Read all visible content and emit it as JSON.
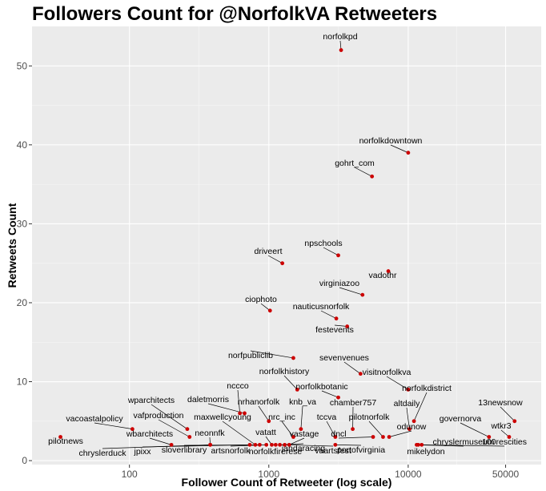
{
  "chart_data": {
    "type": "scatter",
    "title": "Followers Count for @NorfolkVA Retweeters",
    "xlabel": "Follower Count of Retweeter (log scale)",
    "ylabel": "Retweets Count",
    "x_scale": "log10",
    "xlim": [
      20,
      90000
    ],
    "ylim": [
      -0.5,
      55
    ],
    "x_ticks": [
      100,
      1000,
      10000,
      50000
    ],
    "x_tick_labels": [
      "100",
      "1000",
      "10000",
      "50000"
    ],
    "y_ticks": [
      0,
      10,
      20,
      30,
      40,
      50
    ],
    "y_tick_labels": [
      "0",
      "10",
      "20",
      "30",
      "40",
      "50"
    ],
    "grid": true,
    "point_color": "#cc0000",
    "points": [
      {
        "label": "norfolkpd",
        "x": 3300,
        "y": 52
      },
      {
        "label": "norfolkdowntown",
        "x": 10000,
        "y": 39
      },
      {
        "label": "gohrt_com",
        "x": 5500,
        "y": 36
      },
      {
        "label": "npschools",
        "x": 3150,
        "y": 26
      },
      {
        "label": "driveert",
        "x": 1250,
        "y": 25
      },
      {
        "label": "vadothr",
        "x": 7200,
        "y": 24
      },
      {
        "label": "virginiazoo",
        "x": 4700,
        "y": 21
      },
      {
        "label": "ciophoto",
        "x": 1020,
        "y": 19
      },
      {
        "label": "nauticusnorfolk",
        "x": 3050,
        "y": 18
      },
      {
        "label": "festevents",
        "x": 3650,
        "y": 17
      },
      {
        "label": "norfpubliclib",
        "x": 1500,
        "y": 13
      },
      {
        "label": "sevenvenues",
        "x": 4550,
        "y": 11
      },
      {
        "label": "norfolkhistory",
        "x": 1600,
        "y": 9
      },
      {
        "label": "visitnorfolkva",
        "x": 10000,
        "y": 9
      },
      {
        "label": "norfolkbotanic",
        "x": 3150,
        "y": 8
      },
      {
        "label": "nccco",
        "x": 620,
        "y": 6
      },
      {
        "label": "daletmorris",
        "x": 670,
        "y": 6
      },
      {
        "label": "norfolkdistrict",
        "x": 11000,
        "y": 5
      },
      {
        "label": "13newsnow",
        "x": 58000,
        "y": 5
      },
      {
        "label": "nrhanorfolk",
        "x": 1000,
        "y": 5
      },
      {
        "label": "wparchitects",
        "x": 260,
        "y": 4
      },
      {
        "label": "vacoastalpolicy",
        "x": 105,
        "y": 4
      },
      {
        "label": "knb_va",
        "x": 1700,
        "y": 4
      },
      {
        "label": "chamber757",
        "x": 4000,
        "y": 4
      },
      {
        "label": "altdaily",
        "x": 10200,
        "y": 4
      },
      {
        "label": "vafproduction",
        "x": 270,
        "y": 3
      },
      {
        "label": "pilotnews",
        "x": 32,
        "y": 3
      },
      {
        "label": "nrc_inc",
        "x": 1500,
        "y": 3
      },
      {
        "label": "dncl",
        "x": 5600,
        "y": 3
      },
      {
        "label": "tccva",
        "x": 3000,
        "y": 3
      },
      {
        "label": "pilotnorfolk",
        "x": 6600,
        "y": 3
      },
      {
        "label": "governorva",
        "x": 38000,
        "y": 3
      },
      {
        "label": "wtkr3",
        "x": 53000,
        "y": 3
      },
      {
        "label": "odunow",
        "x": 7300,
        "y": 3
      },
      {
        "label": "wbarchitects",
        "x": 200,
        "y": 2
      },
      {
        "label": "neonnfk",
        "x": 380,
        "y": 2
      },
      {
        "label": "maxwellcyoung",
        "x": 800,
        "y": 2
      },
      {
        "label": "vatatt",
        "x": 1050,
        "y": 2
      },
      {
        "label": "vastage",
        "x": 1400,
        "y": 2
      },
      {
        "label": "chryslermuseum",
        "x": 11500,
        "y": 2
      },
      {
        "label": "100rescities",
        "x": 12500,
        "y": 2
      },
      {
        "label": "chryslerduck",
        "x": 380,
        "y": 2
      },
      {
        "label": "jpixx",
        "x": 730,
        "y": 2
      },
      {
        "label": "sloverlibrary",
        "x": 860,
        "y": 2
      },
      {
        "label": "artsnorfolk",
        "x": 960,
        "y": 2
      },
      {
        "label": "norfolkfirerese",
        "x": 1120,
        "y": 2
      },
      {
        "label": "jandaracing",
        "x": 1200,
        "y": 2
      },
      {
        "label": "vaartsfest",
        "x": 1300,
        "y": 2
      },
      {
        "label": "portofvirginia",
        "x": 3000,
        "y": 2
      },
      {
        "label": "mikelydon",
        "x": 11800,
        "y": 2
      }
    ]
  }
}
